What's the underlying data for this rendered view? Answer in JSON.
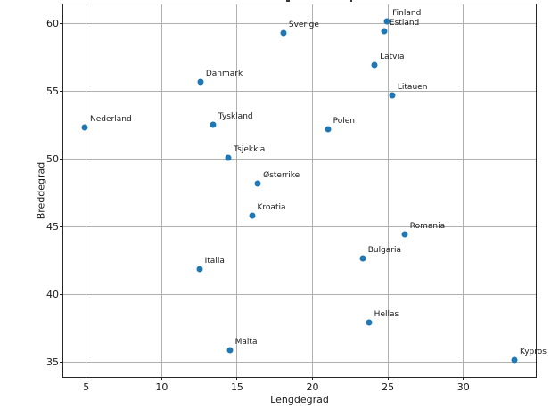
{
  "figure": {
    "background": "#ffffff",
    "point_color": "#1f77b4",
    "grid_color": "#b0b0b0",
    "spine_color": "#262626",
    "text_color": "#1a1a1a"
  },
  "chart_data": {
    "type": "scatter",
    "title": "",
    "xlabel": "Lengdegrad",
    "ylabel": "Breddegrad",
    "xlim": [
      3.48,
      34.8
    ],
    "ylim": [
      33.94,
      61.42
    ],
    "xticks": [
      5,
      10,
      15,
      20,
      25,
      30
    ],
    "yticks": [
      35,
      40,
      45,
      50,
      55,
      60
    ],
    "grid": true,
    "legend_position": "none",
    "points": [
      {
        "label": "Nederland",
        "x": 4.9,
        "y": 52.37
      },
      {
        "label": "Danmark",
        "x": 12.57,
        "y": 55.68
      },
      {
        "label": "Tyskland",
        "x": 13.4,
        "y": 52.52
      },
      {
        "label": "Tsjekkia",
        "x": 14.42,
        "y": 50.09
      },
      {
        "label": "Østerrike",
        "x": 16.37,
        "y": 48.21
      },
      {
        "label": "Kroatia",
        "x": 15.98,
        "y": 45.81
      },
      {
        "label": "Italia",
        "x": 12.5,
        "y": 41.9
      },
      {
        "label": "Malta",
        "x": 14.51,
        "y": 35.9
      },
      {
        "label": "Sverige",
        "x": 18.07,
        "y": 59.33
      },
      {
        "label": "Polen",
        "x": 21.01,
        "y": 52.23
      },
      {
        "label": "Finland",
        "x": 24.94,
        "y": 60.17
      },
      {
        "label": "Estland",
        "x": 24.75,
        "y": 59.44
      },
      {
        "label": "Latvia",
        "x": 24.11,
        "y": 56.95
      },
      {
        "label": "Litauen",
        "x": 25.28,
        "y": 54.69
      },
      {
        "label": "Romania",
        "x": 26.1,
        "y": 44.43
      },
      {
        "label": "Bulgaria",
        "x": 23.32,
        "y": 42.7
      },
      {
        "label": "Hellas",
        "x": 23.73,
        "y": 37.98
      },
      {
        "label": "Kypros",
        "x": 33.38,
        "y": 35.19
      }
    ]
  }
}
